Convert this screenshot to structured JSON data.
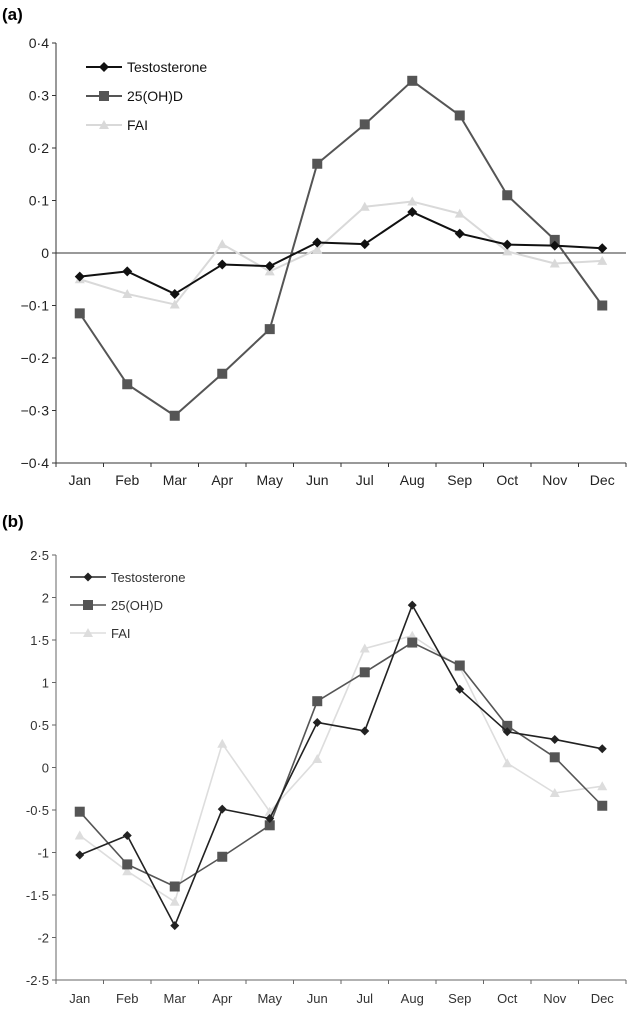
{
  "chart_data": [
    {
      "panel_label": "(a)",
      "type": "line",
      "categories": [
        "Jan",
        "Feb",
        "Mar",
        "Apr",
        "May",
        "Jun",
        "Jul",
        "Aug",
        "Sep",
        "Oct",
        "Nov",
        "Dec"
      ],
      "series": [
        {
          "name": "Testosterone",
          "marker": "diamond",
          "color": "#111111",
          "values": [
            -0.045,
            -0.035,
            -0.078,
            -0.022,
            -0.025,
            0.02,
            0.017,
            0.078,
            0.037,
            0.016,
            0.014,
            0.009
          ]
        },
        {
          "name": "25(OH)D",
          "marker": "square",
          "color": "#555555",
          "values": [
            -0.115,
            -0.25,
            -0.31,
            -0.23,
            -0.145,
            0.17,
            0.245,
            0.328,
            0.262,
            0.11,
            0.025,
            -0.1
          ]
        },
        {
          "name": "FAI",
          "marker": "triangle",
          "color": "#d9d9d9",
          "values": [
            -0.05,
            -0.078,
            -0.098,
            0.017,
            -0.035,
            0.007,
            0.088,
            0.098,
            0.075,
            0.003,
            -0.02,
            -0.015
          ]
        }
      ],
      "ylim": [
        -0.4,
        0.4
      ],
      "yticks": [
        "0·4",
        "0·3",
        "0·2",
        "0·1",
        "0",
        "−0·1",
        "−0·2",
        "−0·3",
        "−0·4"
      ],
      "grid": false,
      "legend_position": "top-left"
    },
    {
      "panel_label": "(b)",
      "type": "line",
      "categories": [
        "Jan",
        "Feb",
        "Mar",
        "Apr",
        "May",
        "Jun",
        "Jul",
        "Aug",
        "Sep",
        "Oct",
        "Nov",
        "Dec"
      ],
      "series": [
        {
          "name": "Testosterone",
          "marker": "diamond",
          "color": "#222222",
          "values": [
            -1.03,
            -0.8,
            -1.86,
            -0.49,
            -0.6,
            0.53,
            0.43,
            1.91,
            0.92,
            0.42,
            0.33,
            0.22
          ]
        },
        {
          "name": "25(OH)D",
          "marker": "square",
          "color": "#555555",
          "values": [
            -0.52,
            -1.14,
            -1.4,
            -1.05,
            -0.68,
            0.78,
            1.12,
            1.47,
            1.2,
            0.49,
            0.12,
            -0.45
          ]
        },
        {
          "name": "FAI",
          "marker": "triangle",
          "color": "#dddddd",
          "values": [
            -0.8,
            -1.22,
            -1.58,
            0.28,
            -0.52,
            0.1,
            1.4,
            1.55,
            1.18,
            0.05,
            -0.3,
            -0.22
          ]
        }
      ],
      "ylim": [
        -2.5,
        2.5
      ],
      "yticks": [
        "2·5",
        "2",
        "1·5",
        "1",
        "0·5",
        "0",
        "-0·5",
        "-1",
        "-1·5",
        "-2",
        "-2·5"
      ],
      "grid": false,
      "legend_position": "top-left"
    }
  ]
}
